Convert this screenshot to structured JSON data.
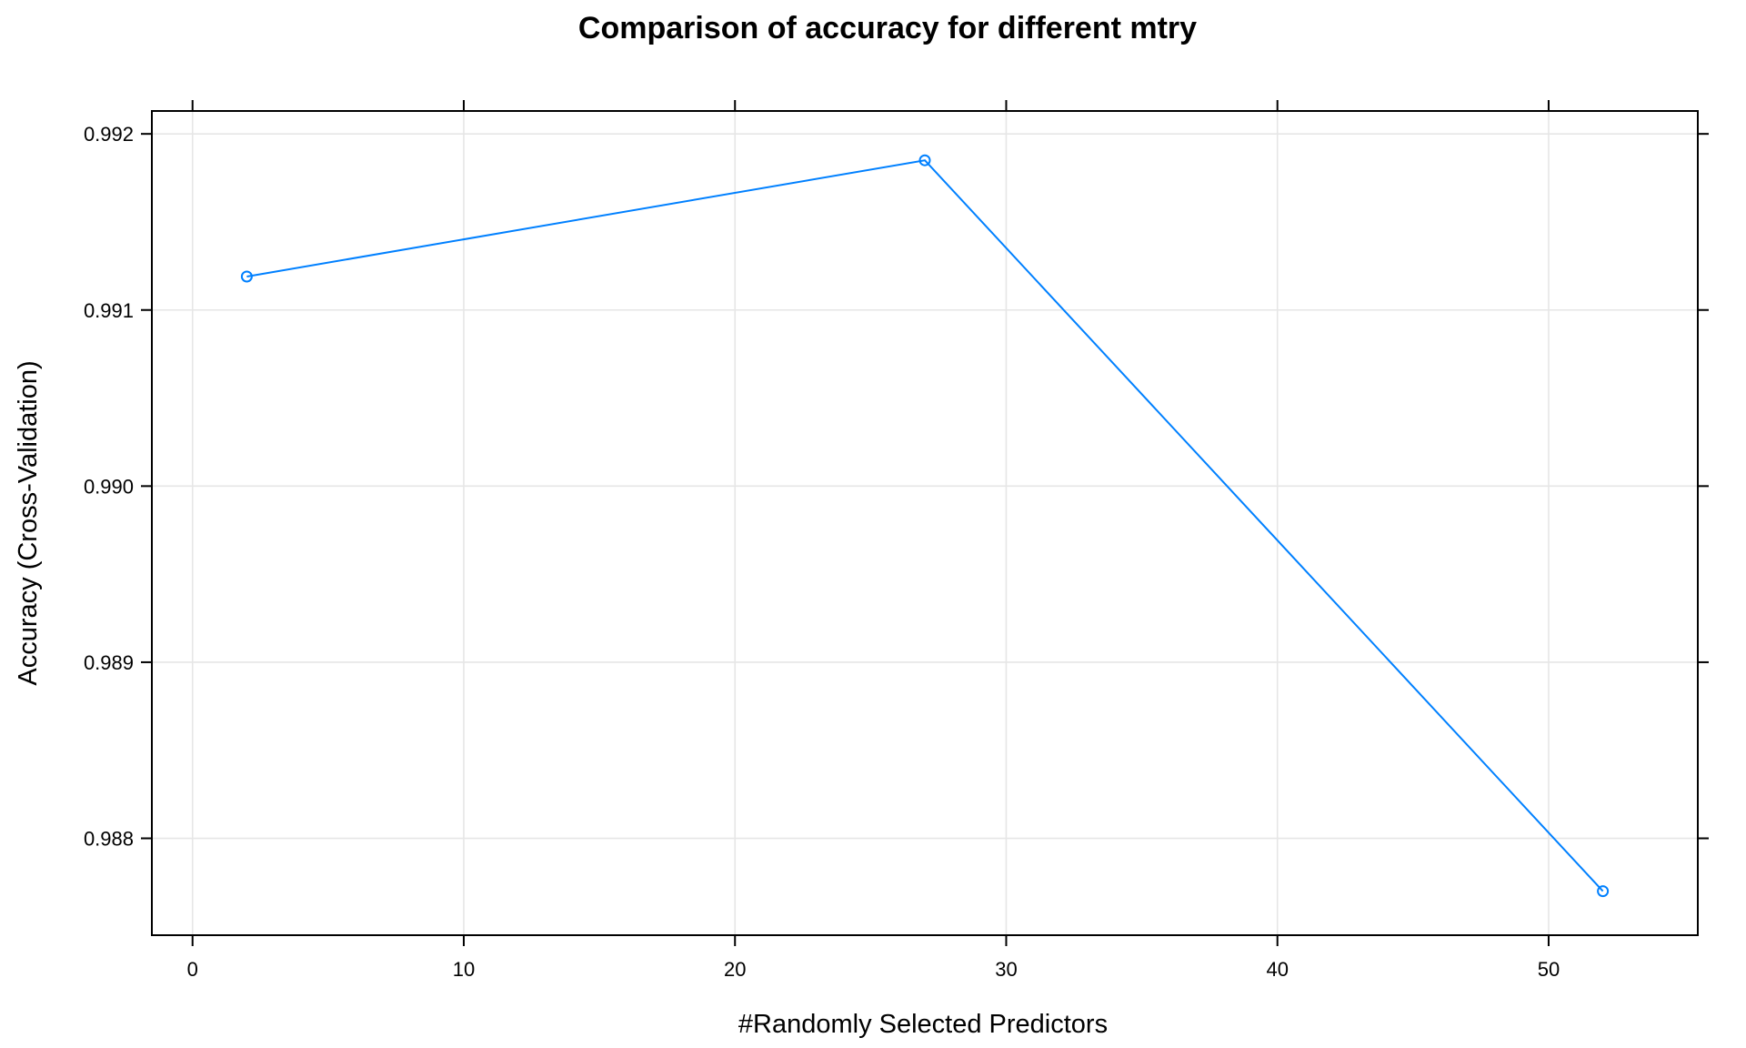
{
  "chart_data": {
    "type": "line",
    "title": "Comparison of accuracy for different mtry",
    "xlabel": "#Randomly Selected Predictors",
    "ylabel": "Accuracy (Cross-Validation)",
    "xlim": [
      -1.5,
      55.5
    ],
    "ylim": [
      0.98745,
      0.99213
    ],
    "xticks": [
      0,
      10,
      20,
      30,
      40,
      50
    ],
    "xtick_labels": [
      "0",
      "10",
      "20",
      "30",
      "40",
      "50"
    ],
    "yticks": [
      0.988,
      0.989,
      0.99,
      0.991,
      0.992
    ],
    "ytick_labels": [
      "0.988",
      "0.989",
      "0.990",
      "0.991",
      "0.992"
    ],
    "grid": true,
    "legend": "none",
    "series": [
      {
        "x": [
          2,
          27,
          52
        ],
        "values": [
          0.99119,
          0.99185,
          0.9877
        ],
        "color": "#0080ff",
        "marker": "open-circle"
      }
    ]
  }
}
